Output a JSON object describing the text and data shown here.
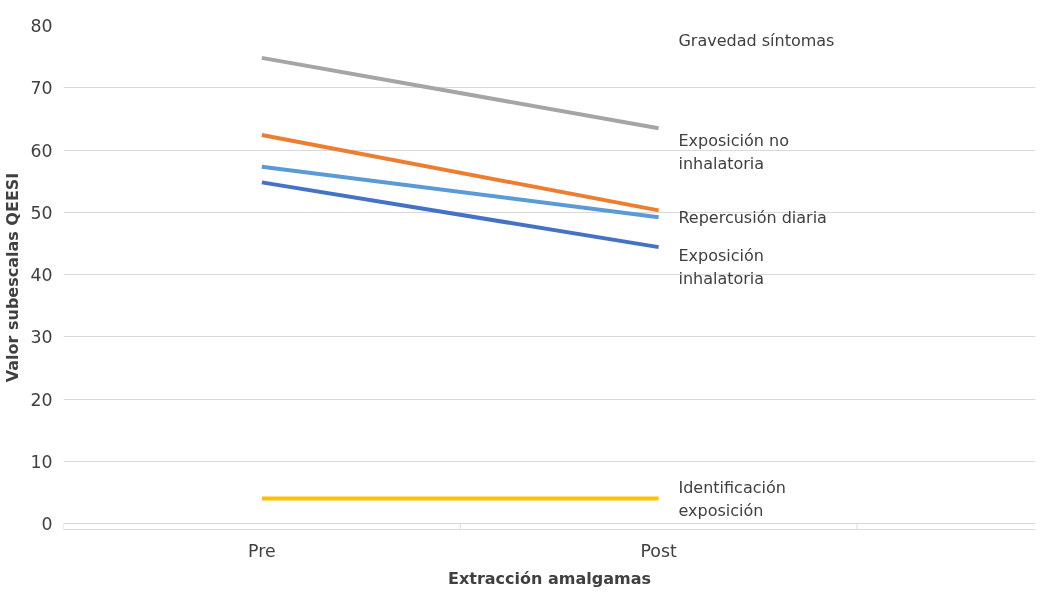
{
  "chart_data": {
    "type": "line",
    "xlabel": "Extracción amalgamas",
    "ylabel": "Valor subescalas QEESI",
    "categories": [
      "Pre",
      "Post"
    ],
    "series": [
      {
        "name": "Gravedad síntomas",
        "color": "#a5a5a5",
        "values": [
          74.8,
          63.5
        ]
      },
      {
        "name": "Exposición no inhalatoria",
        "color": "#ed7d31",
        "values": [
          62.4,
          50.3
        ]
      },
      {
        "name": "Repercusión diaria",
        "color": "#5b9bd5",
        "values": [
          57.3,
          49.2
        ]
      },
      {
        "name": "Exposición inhalatoria",
        "color": "#4472c4",
        "values": [
          54.8,
          44.4
        ]
      },
      {
        "name": "Identificación exposición",
        "color": "#ffc000",
        "values": [
          4.0,
          4.0
        ]
      }
    ],
    "ylim": [
      0,
      80
    ],
    "yticks": [
      0,
      10,
      20,
      30,
      40,
      50,
      60,
      70,
      80
    ],
    "grid": "y",
    "marker": "none",
    "line_style": "solid"
  }
}
